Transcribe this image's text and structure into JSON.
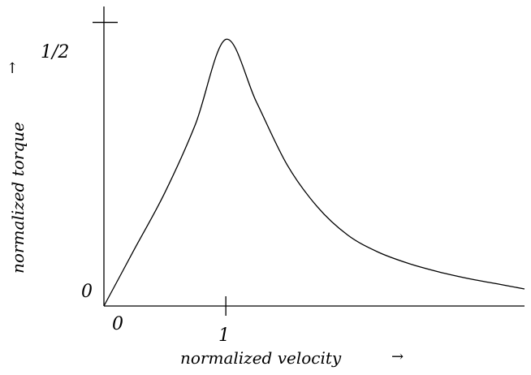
{
  "chart_data": {
    "type": "line",
    "title": "",
    "xlabel": "normalized velocity",
    "ylabel": "normalized torque",
    "xlabel_arrow": "→",
    "ylabel_arrow": "→",
    "xlim": [
      0,
      3.45
    ],
    "ylim": [
      0,
      0.528
    ],
    "x_ticks": [
      {
        "value": 0,
        "label": "0"
      },
      {
        "value": 1,
        "label": "1"
      }
    ],
    "y_ticks": [
      {
        "value": 0,
        "label": "0"
      },
      {
        "value": 0.5,
        "label": "1/2"
      }
    ],
    "grid": false,
    "legend": "none",
    "series": [
      {
        "color": "#000000",
        "x": [
          0,
          0.25,
          0.5,
          0.75,
          1.0,
          1.25,
          1.5,
          1.75,
          2.0,
          2.25,
          2.5,
          2.75,
          3.0,
          3.25,
          3.45
        ],
        "y": [
          0,
          0.1,
          0.2,
          0.32,
          0.47,
          0.36,
          0.25,
          0.175,
          0.125,
          0.095,
          0.075,
          0.06,
          0.048,
          0.038,
          0.03
        ]
      }
    ]
  }
}
